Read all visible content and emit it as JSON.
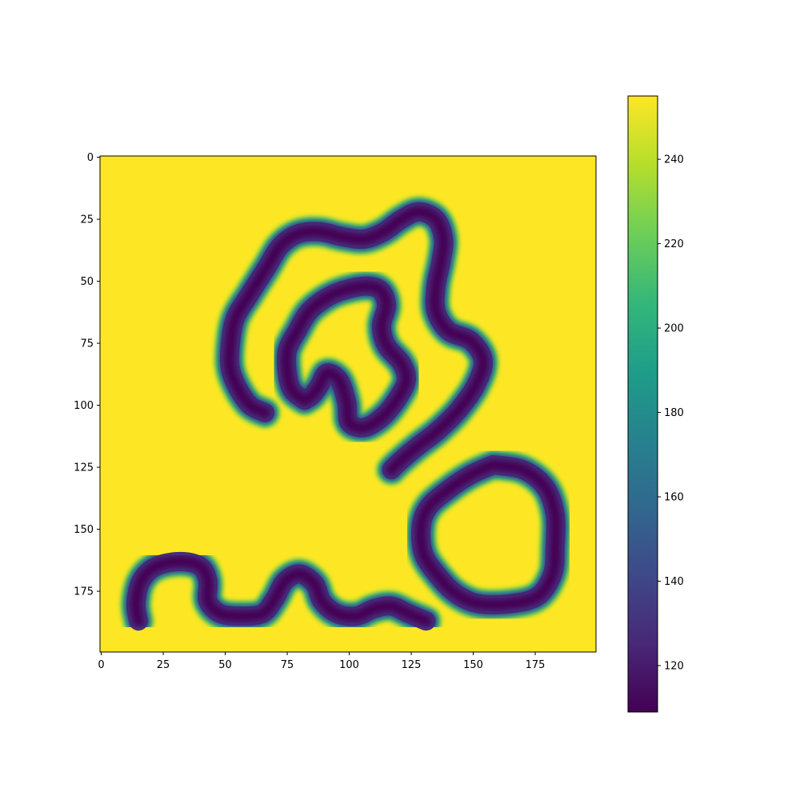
{
  "chart_data": {
    "type": "heatmap",
    "title": "",
    "xlabel": "",
    "ylabel": "",
    "image_size": [
      200,
      200
    ],
    "xlim": [
      0,
      199
    ],
    "ylim": [
      199,
      0
    ],
    "xticks": [
      "0",
      "25",
      "50",
      "75",
      "100",
      "125",
      "150",
      "175"
    ],
    "yticks": [
      "0",
      "25",
      "50",
      "75",
      "100",
      "125",
      "150",
      "175"
    ],
    "colormap": "viridis",
    "background_value": 255,
    "stroke_min_value": 109,
    "colorbar": {
      "range": [
        109,
        255
      ],
      "ticks": [
        "120",
        "140",
        "160",
        "180",
        "200",
        "220",
        "240"
      ]
    },
    "strokes": [
      {
        "name": "upper-spiral",
        "points": [
          [
            66,
            103
          ],
          [
            60,
            100
          ],
          [
            55,
            93
          ],
          [
            52,
            85
          ],
          [
            52,
            76
          ],
          [
            54,
            65
          ],
          [
            60,
            55
          ],
          [
            67,
            44
          ],
          [
            72,
            36
          ],
          [
            79,
            31
          ],
          [
            88,
            30
          ],
          [
            97,
            32
          ],
          [
            106,
            33
          ],
          [
            114,
            30
          ],
          [
            121,
            25
          ],
          [
            128,
            22
          ],
          [
            135,
            25
          ],
          [
            138,
            33
          ],
          [
            137,
            42
          ],
          [
            135,
            52
          ],
          [
            135,
            62
          ],
          [
            140,
            70
          ],
          [
            149,
            74
          ],
          [
            154,
            82
          ],
          [
            151,
            92
          ],
          [
            144,
            102
          ],
          [
            136,
            110
          ],
          [
            127,
            117
          ],
          [
            120,
            123
          ],
          [
            117,
            126
          ]
        ]
      },
      {
        "name": "inner-loop",
        "points": [
          [
            82,
            98
          ],
          [
            77,
            94
          ],
          [
            75,
            87
          ],
          [
            75,
            78
          ],
          [
            79,
            70
          ],
          [
            84,
            62
          ],
          [
            92,
            56
          ],
          [
            100,
            53
          ],
          [
            108,
            52
          ],
          [
            113,
            54
          ],
          [
            115,
            60
          ],
          [
            113,
            68
          ],
          [
            115,
            76
          ],
          [
            121,
            83
          ],
          [
            123,
            90
          ],
          [
            119,
            98
          ],
          [
            113,
            105
          ],
          [
            106,
            109
          ],
          [
            100,
            107
          ],
          [
            99,
            99
          ],
          [
            96,
            90
          ],
          [
            91,
            87
          ],
          [
            88,
            92
          ],
          [
            85,
            96
          ],
          [
            82,
            98
          ]
        ]
      },
      {
        "name": "right-ring",
        "points": [
          [
            158,
            124
          ],
          [
            170,
            126
          ],
          [
            179,
            133
          ],
          [
            183,
            144
          ],
          [
            183,
            157
          ],
          [
            182,
            168
          ],
          [
            176,
            177
          ],
          [
            165,
            180
          ],
          [
            152,
            180
          ],
          [
            143,
            176
          ],
          [
            136,
            169
          ],
          [
            130,
            160
          ],
          [
            129,
            149
          ],
          [
            132,
            141
          ],
          [
            140,
            134
          ],
          [
            149,
            128
          ],
          [
            158,
            124
          ]
        ]
      },
      {
        "name": "bottom-wave",
        "points": [
          [
            15,
            187
          ],
          [
            14,
            180
          ],
          [
            16,
            171
          ],
          [
            22,
            165
          ],
          [
            32,
            163
          ],
          [
            40,
            165
          ],
          [
            43,
            171
          ],
          [
            43,
            179
          ],
          [
            48,
            184
          ],
          [
            56,
            185
          ],
          [
            65,
            184
          ],
          [
            70,
            178
          ],
          [
            74,
            171
          ],
          [
            80,
            168
          ],
          [
            86,
            172
          ],
          [
            89,
            179
          ],
          [
            95,
            184
          ],
          [
            103,
            185
          ],
          [
            110,
            182
          ],
          [
            117,
            181
          ],
          [
            124,
            184
          ],
          [
            131,
            187
          ]
        ]
      }
    ]
  }
}
